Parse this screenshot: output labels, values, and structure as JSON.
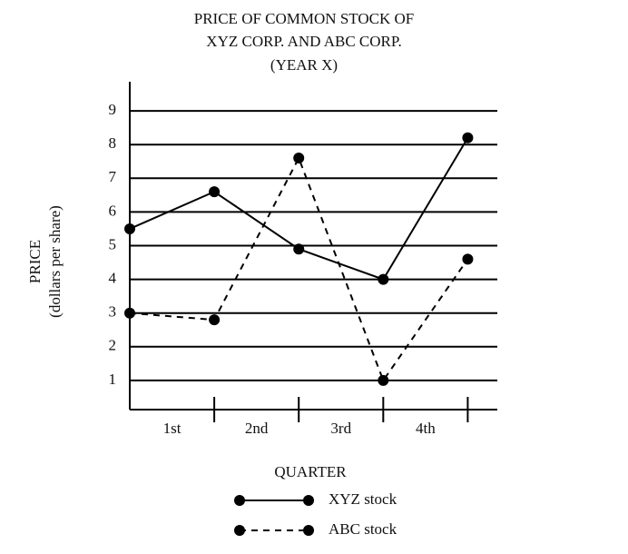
{
  "chart_data": {
    "type": "line",
    "title": [
      "PRICE OF COMMON STOCK OF",
      "XYZ CORP. AND ABC CORP."
    ],
    "subtitle": "(YEAR X)",
    "ylabel": [
      "PRICE",
      "(dollars per share)"
    ],
    "xlabel": "QUARTER",
    "categories": [
      "1st",
      "2nd",
      "3rd",
      "4th"
    ],
    "x": [
      0,
      1,
      2,
      3,
      4
    ],
    "xlim": [
      0,
      4.35
    ],
    "xticks": [
      1,
      2,
      3,
      4
    ],
    "ylim": [
      0,
      10
    ],
    "yticks": [
      1,
      2,
      3,
      4,
      5,
      6,
      7,
      8,
      9
    ],
    "grid": true,
    "series": [
      {
        "name": "XYZ stock",
        "color": "#000000",
        "linestyle": "solid",
        "values": [
          5.5,
          6.6,
          4.9,
          4.0,
          8.2
        ]
      },
      {
        "name": "ABC stock",
        "color": "#000000",
        "linestyle": "dashed",
        "values": [
          3.0,
          2.8,
          7.6,
          1.0,
          4.6
        ]
      }
    ]
  }
}
